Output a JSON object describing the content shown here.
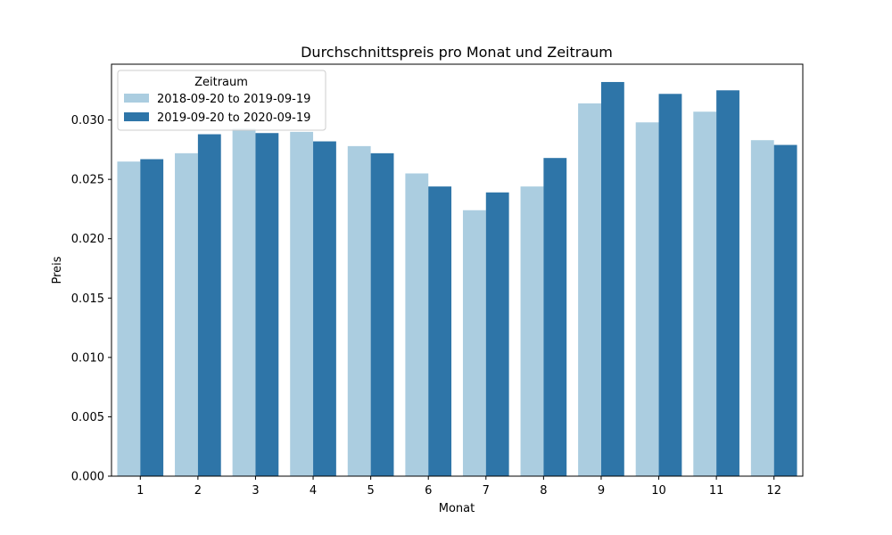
{
  "chart_data": {
    "type": "bar",
    "title": "Durchschnittspreis pro Monat und Zeitraum",
    "xlabel": "Monat",
    "ylabel": "Preis",
    "categories": [
      "1",
      "2",
      "3",
      "4",
      "5",
      "6",
      "7",
      "8",
      "9",
      "10",
      "11",
      "12"
    ],
    "series": [
      {
        "name": "2018-09-20 to 2019-09-19",
        "color": "#abcde0",
        "values": [
          0.0265,
          0.0272,
          0.0293,
          0.029,
          0.0278,
          0.0255,
          0.0224,
          0.0244,
          0.0314,
          0.0298,
          0.0307,
          0.0283
        ]
      },
      {
        "name": "2019-09-20 to 2020-09-19",
        "color": "#2e75a8",
        "values": [
          0.0267,
          0.0288,
          0.0289,
          0.0282,
          0.0272,
          0.0244,
          0.0239,
          0.0268,
          0.0332,
          0.0322,
          0.0325,
          0.0279
        ]
      }
    ],
    "ylim": [
      0,
      0.0347
    ],
    "yticks": [
      "0.000",
      "0.005",
      "0.010",
      "0.015",
      "0.020",
      "0.025",
      "0.030"
    ],
    "legend": {
      "title": "Zeitraum",
      "placement": "top-left"
    },
    "grid": false
  }
}
